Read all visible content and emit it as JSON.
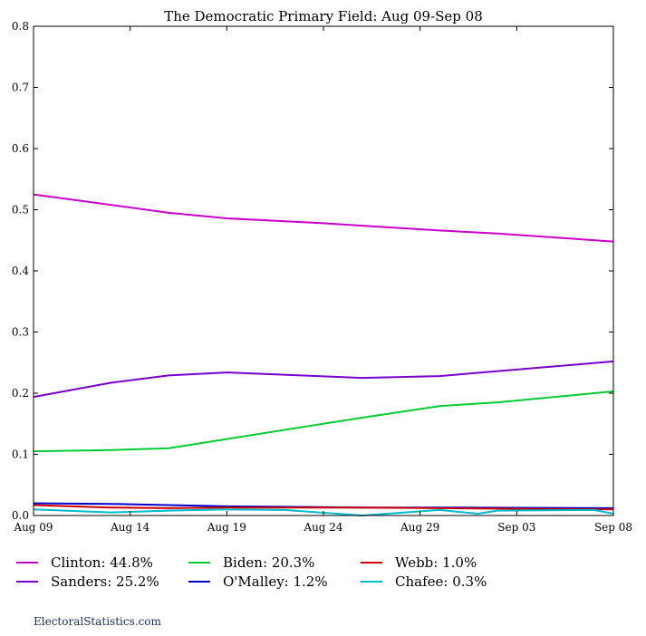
{
  "chart_data": {
    "type": "line",
    "title": "The Democratic Primary Field: Aug 09-Sep 08",
    "xlabel": "",
    "ylabel": "",
    "ylim": [
      0,
      0.8
    ],
    "yticks": [
      "0.0",
      "0.1",
      "0.2",
      "0.3",
      "0.4",
      "0.5",
      "0.6",
      "0.7",
      "0.8"
    ],
    "xlim": [
      0,
      30
    ],
    "xticks": [
      {
        "day": 0,
        "label": "Aug 09"
      },
      {
        "day": 5,
        "label": "Aug 14"
      },
      {
        "day": 10,
        "label": "Aug 19"
      },
      {
        "day": 15,
        "label": "Aug 24"
      },
      {
        "day": 20,
        "label": "Aug 29"
      },
      {
        "day": 25,
        "label": "Sep 03"
      },
      {
        "day": 30,
        "label": "Sep 08"
      }
    ],
    "grid": false,
    "legend_position": "bottom",
    "series": [
      {
        "name": "Clinton: 44.8%",
        "color": "#cc00cc",
        "x": [
          0,
          4,
          7,
          10,
          15,
          17,
          21,
          24,
          30
        ],
        "values": [
          0.525,
          0.508,
          0.495,
          0.486,
          0.478,
          0.474,
          0.466,
          0.461,
          0.448
        ]
      },
      {
        "name": "Sanders: 25.2%",
        "color": "#7700cc",
        "x": [
          0,
          4,
          7,
          10,
          17,
          21,
          30
        ],
        "values": [
          0.194,
          0.217,
          0.229,
          0.234,
          0.225,
          0.228,
          0.252
        ]
      },
      {
        "name": "Biden: 20.3%",
        "color": "#00cc33",
        "x": [
          0,
          4,
          7,
          10,
          17,
          21,
          24,
          30
        ],
        "values": [
          0.105,
          0.107,
          0.11,
          0.125,
          0.16,
          0.179,
          0.185,
          0.203
        ]
      },
      {
        "name": "O'Malley: 1.2%",
        "color": "#0000cc",
        "x": [
          0,
          4,
          7,
          10,
          17,
          21,
          30
        ],
        "values": [
          0.02,
          0.019,
          0.017,
          0.015,
          0.013,
          0.013,
          0.012
        ]
      },
      {
        "name": "Webb: 1.0%",
        "color": "#cc0000",
        "x": [
          0,
          4,
          7,
          10,
          17,
          21,
          30
        ],
        "values": [
          0.017,
          0.013,
          0.012,
          0.013,
          0.013,
          0.012,
          0.01
        ]
      },
      {
        "name": "Chafee: 0.3%",
        "color": "#00bbcc",
        "x": [
          0,
          4,
          7,
          10,
          13,
          17,
          21,
          23,
          24,
          29,
          30
        ],
        "values": [
          0.01,
          0.005,
          0.008,
          0.01,
          0.009,
          0.0,
          0.009,
          0.003,
          0.008,
          0.009,
          0.003
        ]
      }
    ]
  },
  "footer": {
    "text": "ElectoralStatistics.com"
  }
}
